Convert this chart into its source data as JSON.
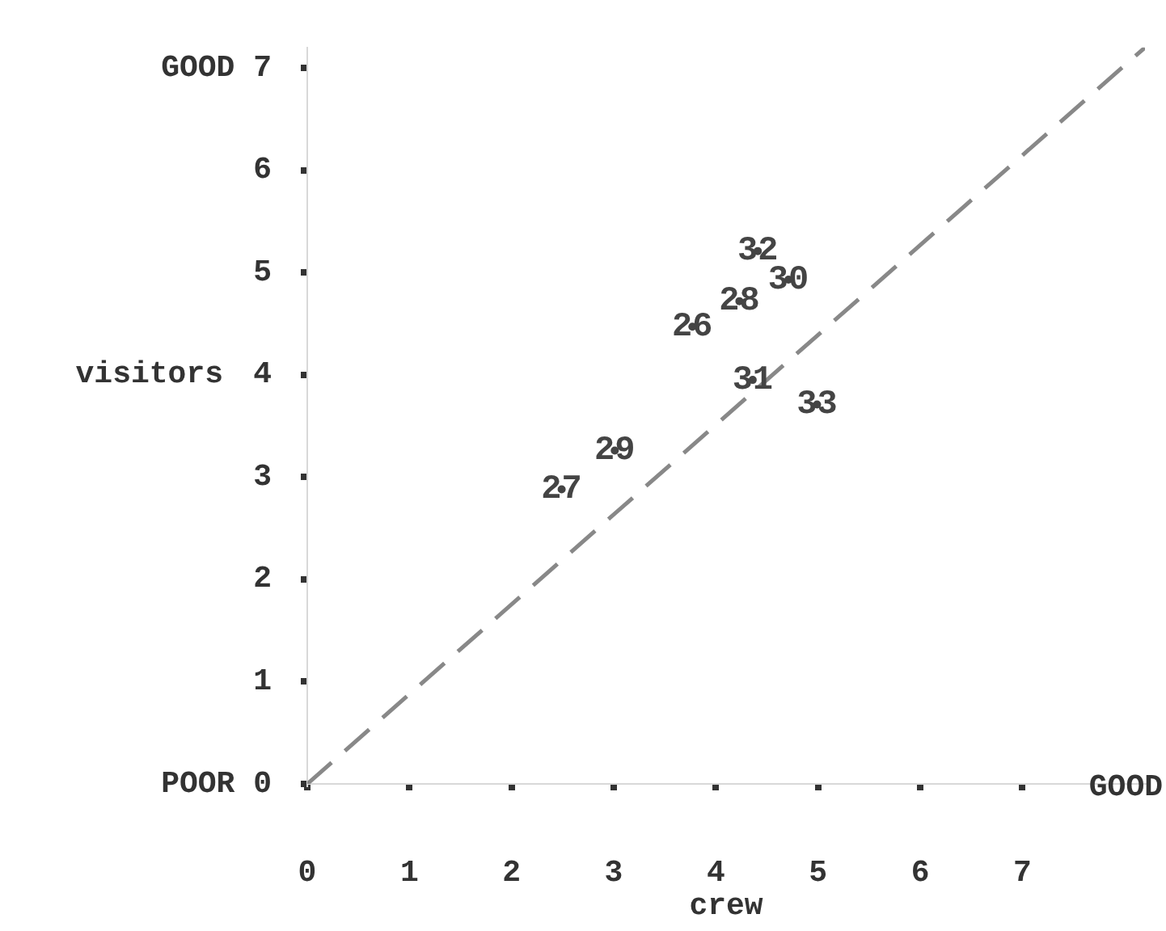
{
  "chart_data": {
    "type": "scatter",
    "xlabel": "crew",
    "ylabel": "visitors",
    "xlim": [
      0,
      8.2
    ],
    "ylim": [
      0,
      7.2
    ],
    "xticks": [
      0,
      1,
      2,
      3,
      4,
      5,
      6,
      7
    ],
    "yticks": [
      {
        "value": 0,
        "label": "POOR 0"
      },
      1,
      2,
      3,
      4,
      5,
      6,
      {
        "value": 7,
        "label": "GOOD 7"
      }
    ],
    "annotations": [
      "GOOD"
    ],
    "grid": false,
    "legend": false,
    "series": [
      {
        "name": "26",
        "color": "#444444",
        "x": [
          3.77
        ],
        "values": [
          4.47
        ]
      },
      {
        "name": "27",
        "color": "#444444",
        "x": [
          2.49
        ],
        "values": [
          2.88
        ]
      },
      {
        "name": "28",
        "color": "#444444",
        "x": [
          4.23
        ],
        "values": [
          4.72
        ]
      },
      {
        "name": "29",
        "color": "#444444",
        "x": [
          3.01
        ],
        "values": [
          3.26
        ]
      },
      {
        "name": "30",
        "color": "#444444",
        "x": [
          4.71
        ],
        "values": [
          4.93
        ]
      },
      {
        "name": "31",
        "color": "#444444",
        "x": [
          4.36
        ],
        "values": [
          3.95
        ]
      },
      {
        "name": "32",
        "color": "#444444",
        "x": [
          4.41
        ],
        "values": [
          5.21
        ]
      },
      {
        "name": "33",
        "color": "#444444",
        "x": [
          4.99
        ],
        "values": [
          3.71
        ]
      },
      {
        "type": "line",
        "color": "#888888",
        "line_style": "dashed",
        "x": [
          0,
          8.2
        ],
        "values": [
          0,
          7.2
        ]
      }
    ]
  }
}
